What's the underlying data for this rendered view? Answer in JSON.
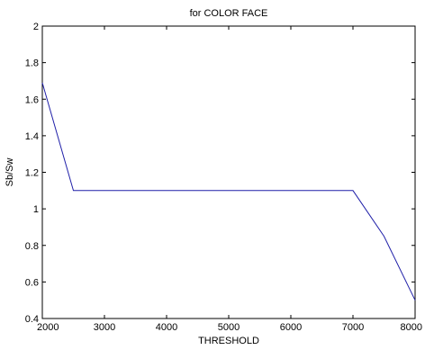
{
  "chart_data": {
    "type": "line",
    "title": "for COLOR FACE",
    "xlabel": "THRESHOLD",
    "ylabel": "Sb/Sw",
    "xlim": [
      2000,
      8000
    ],
    "ylim": [
      0.4,
      2
    ],
    "xticks": [
      2000,
      3000,
      4000,
      5000,
      6000,
      7000,
      8000
    ],
    "yticks": [
      0.4,
      0.6,
      0.8,
      1,
      1.2,
      1.4,
      1.6,
      1.8,
      2
    ],
    "ytick_labels": [
      "0.4",
      "0.6",
      "0.8",
      "1",
      "1.2",
      "1.4",
      "1.6",
      "1.8",
      "2"
    ],
    "grid": false,
    "series": [
      {
        "color": "#1f1fa8",
        "x": [
          2000,
          2500,
          3000,
          3500,
          4000,
          4500,
          5000,
          5500,
          6000,
          6500,
          7000,
          7500,
          8000
        ],
        "y": [
          1.69,
          1.1,
          1.1,
          1.1,
          1.1,
          1.1,
          1.1,
          1.1,
          1.1,
          1.1,
          1.1,
          0.85,
          0.5
        ]
      }
    ]
  }
}
